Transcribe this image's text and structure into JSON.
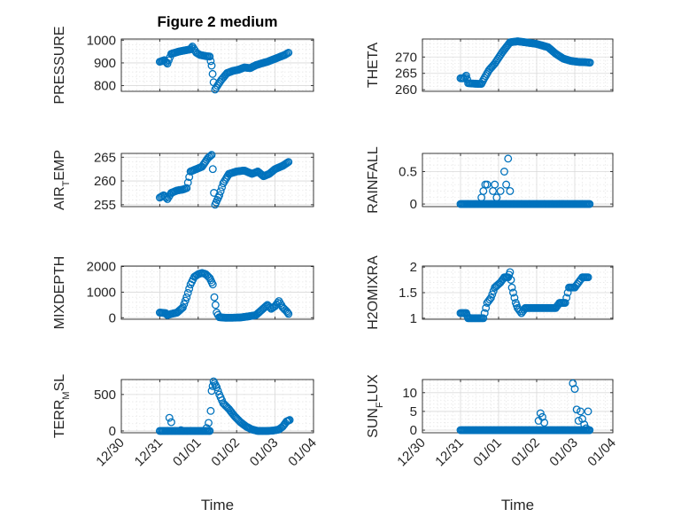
{
  "figure": {
    "title": "Figure 2 medium"
  },
  "colors": {
    "marker": "#0072BD",
    "axis": "#262626",
    "grid_major": "#d9d9d9",
    "grid_minor": "#e8e8e8"
  },
  "chart_data": [
    {
      "type": "scatter",
      "marker": "open-circle",
      "title": "Figure 2 medium",
      "ylabel": "PRESSURE",
      "xlabel": "",
      "x_kind": "days since 12/30",
      "xlim": [
        0,
        5
      ],
      "ylim": [
        775,
        1005
      ],
      "x_ticks": [
        0,
        1,
        2,
        3,
        4,
        5
      ],
      "x_tick_labels": [
        "12/30",
        "12/31",
        "01/01",
        "01/02",
        "01/03",
        "01/04"
      ],
      "show_x_tick_labels": false,
      "y_ticks": [
        800,
        900,
        1000
      ],
      "y_tick_labels": [
        "800",
        "900",
        "1000"
      ],
      "grid": true,
      "minor_grid": true,
      "curve": [
        [
          1.0,
          905
        ],
        [
          1.12,
          912
        ],
        [
          1.2,
          897
        ],
        [
          1.3,
          940
        ],
        [
          1.5,
          950
        ],
        [
          1.65,
          955
        ],
        [
          1.8,
          960
        ],
        [
          1.85,
          972
        ],
        [
          1.95,
          945
        ],
        [
          2.05,
          935
        ],
        [
          2.2,
          930
        ],
        [
          2.3,
          928
        ],
        [
          2.35,
          888
        ],
        [
          2.4,
          815
        ],
        [
          2.44,
          783
        ],
        [
          2.5,
          800
        ],
        [
          2.6,
          825
        ],
        [
          2.75,
          855
        ],
        [
          2.9,
          865
        ],
        [
          3.05,
          870
        ],
        [
          3.2,
          880
        ],
        [
          3.35,
          877
        ],
        [
          3.5,
          890
        ],
        [
          3.65,
          898
        ],
        [
          3.8,
          905
        ],
        [
          3.95,
          915
        ],
        [
          4.1,
          925
        ],
        [
          4.25,
          935
        ],
        [
          4.35,
          945
        ]
      ]
    },
    {
      "type": "scatter",
      "marker": "open-circle",
      "ylabel": "THETA",
      "xlabel": "",
      "xlim": [
        0,
        5
      ],
      "ylim": [
        259.5,
        275.5
      ],
      "x_ticks": [
        0,
        1,
        2,
        3,
        4,
        5
      ],
      "x_tick_labels": [
        "12/30",
        "12/31",
        "01/01",
        "01/02",
        "01/03",
        "01/04"
      ],
      "show_x_tick_labels": false,
      "y_ticks": [
        260,
        265,
        270
      ],
      "y_tick_labels": [
        "260",
        "265",
        "270"
      ],
      "grid": true,
      "minor_grid": true,
      "curve": [
        [
          1.0,
          263.5
        ],
        [
          1.1,
          263.5
        ],
        [
          1.15,
          264.3
        ],
        [
          1.2,
          262.0
        ],
        [
          1.3,
          261.9
        ],
        [
          1.45,
          261.8
        ],
        [
          1.55,
          261.8
        ],
        [
          1.6,
          263.0
        ],
        [
          1.75,
          266.0
        ],
        [
          1.9,
          268.0
        ],
        [
          2.1,
          271.5
        ],
        [
          2.3,
          274.5
        ],
        [
          2.5,
          274.8
        ],
        [
          2.7,
          274.5
        ],
        [
          3.0,
          274.0
        ],
        [
          3.3,
          273.0
        ],
        [
          3.5,
          271.0
        ],
        [
          3.7,
          269.5
        ],
        [
          3.9,
          268.8
        ],
        [
          4.1,
          268.5
        ],
        [
          4.3,
          268.4
        ],
        [
          4.4,
          268.3
        ]
      ]
    },
    {
      "type": "scatter",
      "marker": "open-circle",
      "ylabel": "AIR_TEMP",
      "xlabel": "",
      "xlim": [
        0,
        5
      ],
      "ylim": [
        254.6,
        265.8
      ],
      "x_ticks": [
        0,
        1,
        2,
        3,
        4,
        5
      ],
      "x_tick_labels": [
        "12/30",
        "12/31",
        "01/01",
        "01/02",
        "01/03",
        "01/04"
      ],
      "show_x_tick_labels": false,
      "y_ticks": [
        255,
        260,
        265
      ],
      "y_tick_labels": [
        "255",
        "260",
        "265"
      ],
      "grid": true,
      "minor_grid": true,
      "curve": [
        [
          1.0,
          256.5
        ],
        [
          1.1,
          257.0
        ],
        [
          1.2,
          256.2
        ],
        [
          1.3,
          257.5
        ],
        [
          1.45,
          258.0
        ],
        [
          1.6,
          258.2
        ],
        [
          1.7,
          258.5
        ],
        [
          1.8,
          262.0
        ],
        [
          1.95,
          262.5
        ],
        [
          2.1,
          263.0
        ],
        [
          2.25,
          264.8
        ],
        [
          2.35,
          265.5
        ],
        [
          2.38,
          262.5
        ],
        [
          2.41,
          257.5
        ],
        [
          2.44,
          255.0
        ],
        [
          2.55,
          257.0
        ],
        [
          2.65,
          259.5
        ],
        [
          2.8,
          261.5
        ],
        [
          3.0,
          262.0
        ],
        [
          3.2,
          262.2
        ],
        [
          3.4,
          261.5
        ],
        [
          3.55,
          262.0
        ],
        [
          3.7,
          261.0
        ],
        [
          3.85,
          261.5
        ],
        [
          4.0,
          262.5
        ],
        [
          4.2,
          263.2
        ],
        [
          4.35,
          264.0
        ]
      ]
    },
    {
      "type": "scatter",
      "marker": "open-circle",
      "ylabel": "RAINFALL",
      "xlabel": "",
      "xlim": [
        0,
        5
      ],
      "ylim": [
        -0.04,
        0.78
      ],
      "x_ticks": [
        0,
        1,
        2,
        3,
        4,
        5
      ],
      "x_tick_labels": [
        "12/30",
        "12/31",
        "01/01",
        "01/02",
        "01/03",
        "01/04"
      ],
      "show_x_tick_labels": false,
      "y_ticks": [
        0,
        0.5
      ],
      "y_tick_labels": [
        "0",
        "0.5"
      ],
      "grid": true,
      "minor_grid": true,
      "baseline": {
        "value": 0,
        "from": 1.0,
        "to": 4.4,
        "step": 0.03
      },
      "points": [
        [
          1.55,
          0.1
        ],
        [
          1.6,
          0.2
        ],
        [
          1.65,
          0.3
        ],
        [
          1.7,
          0.3
        ],
        [
          1.85,
          0.2
        ],
        [
          1.9,
          0.3
        ],
        [
          1.95,
          0.1
        ],
        [
          2.05,
          0.2
        ],
        [
          2.15,
          0.5
        ],
        [
          2.2,
          0.3
        ],
        [
          2.25,
          0.7
        ],
        [
          2.3,
          0.2
        ]
      ]
    },
    {
      "type": "scatter",
      "marker": "open-circle",
      "ylabel": "MIXDEPTH",
      "xlabel": "",
      "xlim": [
        0,
        5
      ],
      "ylim": [
        -60,
        2020
      ],
      "x_ticks": [
        0,
        1,
        2,
        3,
        4,
        5
      ],
      "x_tick_labels": [
        "12/30",
        "12/31",
        "01/01",
        "01/02",
        "01/03",
        "01/04"
      ],
      "show_x_tick_labels": false,
      "y_ticks": [
        0,
        1000,
        2000
      ],
      "y_tick_labels": [
        "0",
        "1000",
        "2000"
      ],
      "grid": true,
      "minor_grid": true,
      "curve": [
        [
          1.0,
          200
        ],
        [
          1.15,
          180
        ],
        [
          1.2,
          100
        ],
        [
          1.3,
          150
        ],
        [
          1.45,
          200
        ],
        [
          1.6,
          400
        ],
        [
          1.7,
          800
        ],
        [
          1.8,
          1300
        ],
        [
          1.9,
          1600
        ],
        [
          2.0,
          1700
        ],
        [
          2.1,
          1750
        ],
        [
          2.2,
          1700
        ],
        [
          2.3,
          1550
        ],
        [
          2.38,
          1300
        ],
        [
          2.42,
          800
        ],
        [
          2.48,
          200
        ],
        [
          2.55,
          20
        ],
        [
          2.7,
          0
        ],
        [
          2.9,
          0
        ],
        [
          3.1,
          10
        ],
        [
          3.3,
          50
        ],
        [
          3.5,
          100
        ],
        [
          3.65,
          300
        ],
        [
          3.8,
          500
        ],
        [
          3.9,
          350
        ],
        [
          4.0,
          450
        ],
        [
          4.1,
          650
        ],
        [
          4.2,
          400
        ],
        [
          4.3,
          250
        ],
        [
          4.35,
          150
        ]
      ]
    },
    {
      "type": "scatter",
      "marker": "open-circle",
      "ylabel": "H2OMIXRA",
      "xlabel": "",
      "xlim": [
        0,
        5
      ],
      "ylim": [
        0.98,
        2.02
      ],
      "x_ticks": [
        0,
        1,
        2,
        3,
        4,
        5
      ],
      "x_tick_labels": [
        "12/30",
        "12/31",
        "01/01",
        "01/02",
        "01/03",
        "01/04"
      ],
      "show_x_tick_labels": false,
      "y_ticks": [
        1,
        1.5,
        2
      ],
      "y_tick_labels": [
        "1",
        "1.5",
        "2"
      ],
      "grid": true,
      "minor_grid": true,
      "curve": [
        [
          1.0,
          1.1
        ],
        [
          1.15,
          1.1
        ],
        [
          1.2,
          1.0
        ],
        [
          1.35,
          1.0
        ],
        [
          1.5,
          1.0
        ],
        [
          1.6,
          1.0
        ],
        [
          1.7,
          1.3
        ],
        [
          1.8,
          1.4
        ],
        [
          1.9,
          1.6
        ],
        [
          2.05,
          1.7
        ],
        [
          2.15,
          1.8
        ],
        [
          2.25,
          1.8
        ],
        [
          2.3,
          1.9
        ],
        [
          2.35,
          1.6
        ],
        [
          2.45,
          1.3
        ],
        [
          2.5,
          1.2
        ],
        [
          2.6,
          1.1
        ],
        [
          2.7,
          1.2
        ],
        [
          3.0,
          1.2
        ],
        [
          3.3,
          1.2
        ],
        [
          3.5,
          1.2
        ],
        [
          3.6,
          1.3
        ],
        [
          3.75,
          1.3
        ],
        [
          3.85,
          1.6
        ],
        [
          4.0,
          1.6
        ],
        [
          4.1,
          1.7
        ],
        [
          4.2,
          1.8
        ],
        [
          4.35,
          1.8
        ]
      ]
    },
    {
      "type": "scatter",
      "marker": "open-circle",
      "ylabel": "TERR_MSL",
      "xlabel": "Time",
      "xlim": [
        0,
        5
      ],
      "ylim": [
        -25,
        705
      ],
      "x_ticks": [
        0,
        1,
        2,
        3,
        4,
        5
      ],
      "x_tick_labels": [
        "12/30",
        "12/31",
        "01/01",
        "01/02",
        "01/03",
        "01/04"
      ],
      "show_x_tick_labels": true,
      "y_ticks": [
        0,
        500
      ],
      "y_tick_labels": [
        "0",
        "500"
      ],
      "grid": true,
      "minor_grid": true,
      "baseline": {
        "value": 0,
        "from": 1.0,
        "to": 2.3,
        "step": 0.03
      },
      "points": [
        [
          1.25,
          180
        ],
        [
          1.3,
          120
        ],
        [
          1.55,
          10
        ],
        [
          2.22,
          40
        ],
        [
          2.27,
          110
        ]
      ],
      "curve": [
        [
          2.3,
          0
        ],
        [
          2.35,
          550
        ],
        [
          2.4,
          680
        ],
        [
          2.48,
          600
        ],
        [
          2.55,
          500
        ],
        [
          2.65,
          380
        ],
        [
          2.8,
          300
        ],
        [
          2.95,
          200
        ],
        [
          3.1,
          120
        ],
        [
          3.25,
          60
        ],
        [
          3.4,
          20
        ],
        [
          3.55,
          0
        ],
        [
          3.8,
          0
        ],
        [
          3.95,
          5
        ],
        [
          4.1,
          20
        ],
        [
          4.2,
          60
        ],
        [
          4.3,
          130
        ],
        [
          4.38,
          150
        ]
      ]
    },
    {
      "type": "scatter",
      "marker": "open-circle",
      "ylabel": "SUN_FLUX",
      "xlabel": "Time",
      "xlim": [
        0,
        5
      ],
      "ylim": [
        -0.7,
        13.5
      ],
      "x_ticks": [
        0,
        1,
        2,
        3,
        4,
        5
      ],
      "x_tick_labels": [
        "12/30",
        "12/31",
        "01/01",
        "01/02",
        "01/03",
        "01/04"
      ],
      "show_x_tick_labels": true,
      "y_ticks": [
        0,
        5,
        10
      ],
      "y_tick_labels": [
        "0",
        "5",
        "10"
      ],
      "grid": true,
      "minor_grid": true,
      "baseline": {
        "value": 0,
        "from": 1.0,
        "to": 4.4,
        "step": 0.03
      },
      "points": [
        [
          3.05,
          2.5
        ],
        [
          3.1,
          4.5
        ],
        [
          3.15,
          3.5
        ],
        [
          3.2,
          2.0
        ],
        [
          3.95,
          12.5
        ],
        [
          4.0,
          11.0
        ],
        [
          4.05,
          5.5
        ],
        [
          4.1,
          2.5
        ],
        [
          4.15,
          5.0
        ],
        [
          4.2,
          3.0
        ],
        [
          4.25,
          1.5
        ],
        [
          4.3,
          0.5
        ],
        [
          4.35,
          5.0
        ]
      ]
    }
  ]
}
